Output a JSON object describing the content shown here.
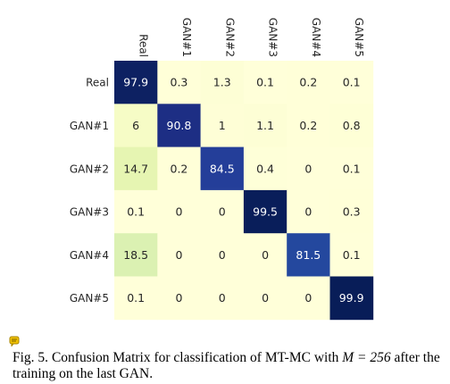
{
  "chart_data": {
    "type": "heatmap",
    "title": "",
    "xlabel": "",
    "ylabel": "",
    "x_categories": [
      "Real",
      "GAN#1",
      "GAN#2",
      "GAN#3",
      "GAN#4",
      "GAN#5"
    ],
    "y_categories": [
      "Real",
      "GAN#1",
      "GAN#2",
      "GAN#3",
      "GAN#4",
      "GAN#5"
    ],
    "values": [
      [
        "97.9",
        "0.3",
        "1.3",
        "0.1",
        "0.2",
        "0.1"
      ],
      [
        "6",
        "90.8",
        "1",
        "1.1",
        "0.2",
        "0.8"
      ],
      [
        "14.7",
        "0.2",
        "84.5",
        "0.4",
        "0",
        "0.1"
      ],
      [
        "0.1",
        "0",
        "0",
        "99.5",
        "0",
        "0.3"
      ],
      [
        "18.5",
        "0",
        "0",
        "0",
        "81.5",
        "0.1"
      ],
      [
        "0.1",
        "0",
        "0",
        "0",
        "0",
        "99.9"
      ]
    ],
    "value_range": [
      0,
      100
    ],
    "colormap": "YlGnBu",
    "x_tick_position": "top",
    "x_tick_rotation": "vertical",
    "grid": false,
    "legend": "none"
  },
  "caption": {
    "prefix": "Fig. 5.",
    "text_before_math": "Confusion Matrix for classification of MT-MC with",
    "math": "M = 256",
    "text_after_math": "after the training on the last GAN."
  },
  "colors": {
    "caption_icon": "#e5b700"
  }
}
